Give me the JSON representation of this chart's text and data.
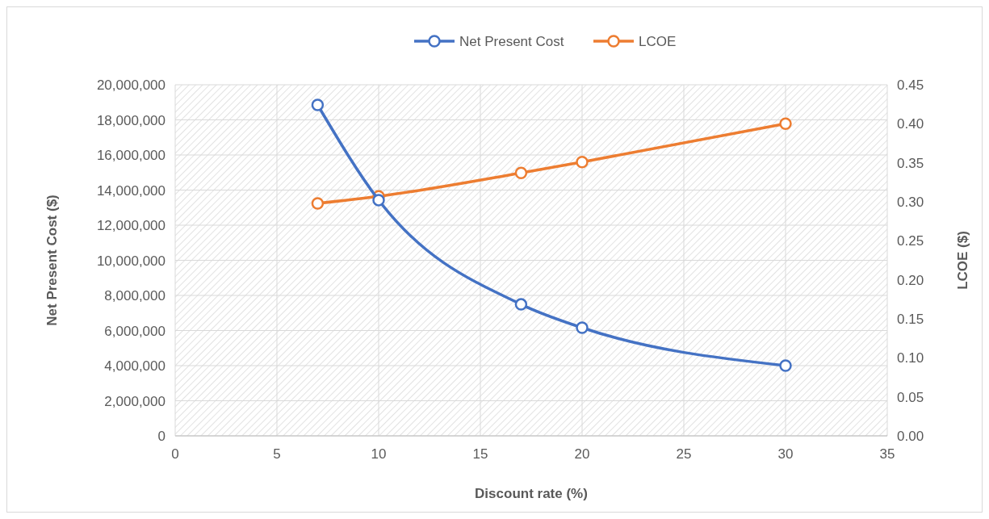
{
  "chart_data": {
    "type": "line",
    "xlabel": "Discount rate (%)",
    "ylabel": "Net Present Cost ($)",
    "y2label": "LCOE ($)",
    "x": [
      7,
      10,
      17,
      20,
      30
    ],
    "series": [
      {
        "name": "Net Present Cost",
        "color": "#4472c4",
        "values": [
          18850000,
          13430000,
          7490000,
          6160000,
          4000000
        ]
      },
      {
        "name": "LCOE",
        "color": "#ed7d31",
        "axis": "y2",
        "values": [
          0.298,
          0.307,
          0.337,
          0.351,
          0.4
        ]
      }
    ],
    "xlim": [
      0,
      35
    ],
    "xticks": [
      0,
      5,
      10,
      15,
      20,
      25,
      30,
      35
    ],
    "ylim": [
      0,
      20000000
    ],
    "yticks": [
      {
        "value": 0,
        "label": "0"
      },
      {
        "value": 2000000,
        "label": "2,000,000"
      },
      {
        "value": 4000000,
        "label": "4,000,000"
      },
      {
        "value": 6000000,
        "label": "6,000,000"
      },
      {
        "value": 8000000,
        "label": "8,000,000"
      },
      {
        "value": 10000000,
        "label": "10,000,000"
      },
      {
        "value": 12000000,
        "label": "12,000,000"
      },
      {
        "value": 14000000,
        "label": "14,000,000"
      },
      {
        "value": 16000000,
        "label": "16,000,000"
      },
      {
        "value": 18000000,
        "label": "18,000,000"
      },
      {
        "value": 20000000,
        "label": "20,000,000"
      }
    ],
    "y2lim": [
      0,
      0.45
    ],
    "y2ticks": [
      {
        "value": 0,
        "label": "0.00"
      },
      {
        "value": 0.05,
        "label": "0.05"
      },
      {
        "value": 0.1,
        "label": "0.10"
      },
      {
        "value": 0.15,
        "label": "0.15"
      },
      {
        "value": 0.2,
        "label": "0.20"
      },
      {
        "value": 0.25,
        "label": "0.25"
      },
      {
        "value": 0.3,
        "label": "0.30"
      },
      {
        "value": 0.35,
        "label": "0.35"
      },
      {
        "value": 0.4,
        "label": "0.40"
      },
      {
        "value": 0.45,
        "label": "0.45"
      }
    ],
    "grid": true,
    "legend": "top",
    "marker": "circle",
    "line_style": "solid"
  }
}
